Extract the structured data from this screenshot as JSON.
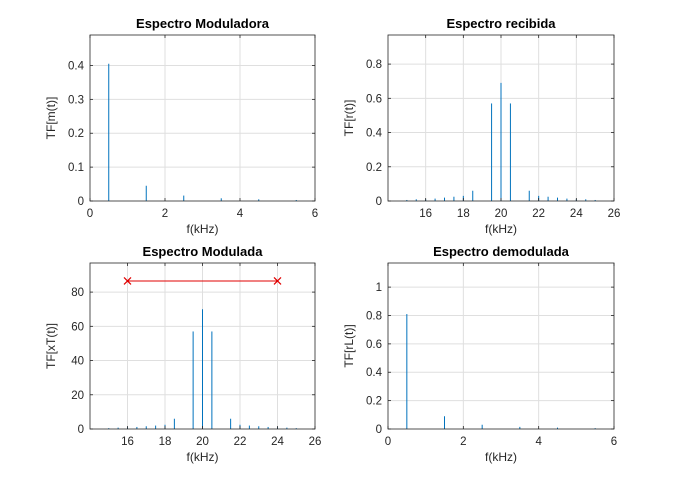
{
  "colors": {
    "stem": "#0072BD",
    "grid": "#dfdfdf",
    "axis": "#262626",
    "annotation": "#e00000"
  },
  "chart_data": [
    {
      "type": "stem",
      "title": "Espectro Moduladora",
      "xlabel": "f(kHz)",
      "ylabel": "TF[m(t)]",
      "xlim": [
        0,
        6
      ],
      "ylim": [
        0,
        0.49
      ],
      "xticks": [
        0,
        2,
        4,
        6
      ],
      "yticks": [
        0,
        0.1,
        0.2,
        0.3,
        0.4
      ],
      "xtick_labels": [
        "0",
        "2",
        "4",
        "6"
      ],
      "ytick_labels": [
        "0",
        "0.1",
        "0.2",
        "0.3",
        "0.4"
      ],
      "grid": true,
      "x": [
        0.5,
        1.5,
        2.5,
        3.5,
        4.5,
        5.5
      ],
      "y": [
        0.405,
        0.045,
        0.016,
        0.008,
        0.005,
        0.003
      ]
    },
    {
      "type": "stem",
      "title": "Espectro recibida",
      "xlabel": "f(kHz)",
      "ylabel": "TF[r(t)]",
      "xlim": [
        14,
        26
      ],
      "ylim": [
        0,
        0.97
      ],
      "xticks": [
        16,
        18,
        20,
        22,
        24,
        26
      ],
      "yticks": [
        0,
        0.2,
        0.4,
        0.6,
        0.8
      ],
      "xtick_labels": [
        "16",
        "18",
        "20",
        "22",
        "24",
        "26"
      ],
      "ytick_labels": [
        "0",
        "0.2",
        "0.4",
        "0.6",
        "0.8"
      ],
      "grid": true,
      "x": [
        15,
        15.5,
        16,
        16.5,
        17,
        17.5,
        18,
        18.5,
        19.5,
        20,
        20.5,
        21.5,
        22,
        22.5,
        23,
        23.5,
        24,
        24.5,
        25
      ],
      "y": [
        0.006,
        0.01,
        0.01,
        0.014,
        0.02,
        0.025,
        0.03,
        0.06,
        0.57,
        0.69,
        0.57,
        0.06,
        0.03,
        0.025,
        0.02,
        0.014,
        0.01,
        0.01,
        0.006
      ]
    },
    {
      "type": "stem",
      "title": "Espectro Modulada",
      "xlabel": "f(kHz)",
      "ylabel": "TF[xT(t)]",
      "xlim": [
        14,
        26
      ],
      "ylim": [
        0,
        97
      ],
      "xticks": [
        16,
        18,
        20,
        22,
        24,
        26
      ],
      "yticks": [
        0,
        20,
        40,
        60,
        80
      ],
      "xtick_labels": [
        "16",
        "18",
        "20",
        "22",
        "24",
        "26"
      ],
      "ytick_labels": [
        "0",
        "20",
        "40",
        "60",
        "80"
      ],
      "grid": true,
      "x": [
        15,
        15.5,
        16,
        16.5,
        17,
        17.5,
        18,
        18.5,
        19.5,
        20,
        20.5,
        21.5,
        22,
        22.5,
        23,
        23.5,
        24,
        24.5,
        25
      ],
      "y": [
        0.5,
        0.8,
        1,
        1.2,
        1.6,
        2,
        2.5,
        6,
        57,
        70,
        57,
        6,
        2.5,
        2,
        1.6,
        1.2,
        1,
        0.8,
        0.5
      ],
      "annotation": {
        "type": "line-with-x-markers",
        "x": [
          16,
          24
        ],
        "y": [
          86.5,
          86.5
        ]
      }
    },
    {
      "type": "stem",
      "title": "Espectro demodulada",
      "xlabel": "f(kHz)",
      "ylabel": "TF[rL(t)]",
      "xlim": [
        0,
        6
      ],
      "ylim": [
        0,
        1.17
      ],
      "xticks": [
        0,
        2,
        4,
        6
      ],
      "yticks": [
        0,
        0.2,
        0.4,
        0.6,
        0.8,
        1
      ],
      "xtick_labels": [
        "0",
        "2",
        "4",
        "6"
      ],
      "ytick_labels": [
        "0",
        "0.2",
        "0.4",
        "0.6",
        "0.8",
        "1"
      ],
      "grid": true,
      "x": [
        0.5,
        1.5,
        2.5,
        3.5,
        4.5,
        5.5
      ],
      "y": [
        0.81,
        0.09,
        0.03,
        0.015,
        0.01,
        0.006
      ]
    }
  ]
}
